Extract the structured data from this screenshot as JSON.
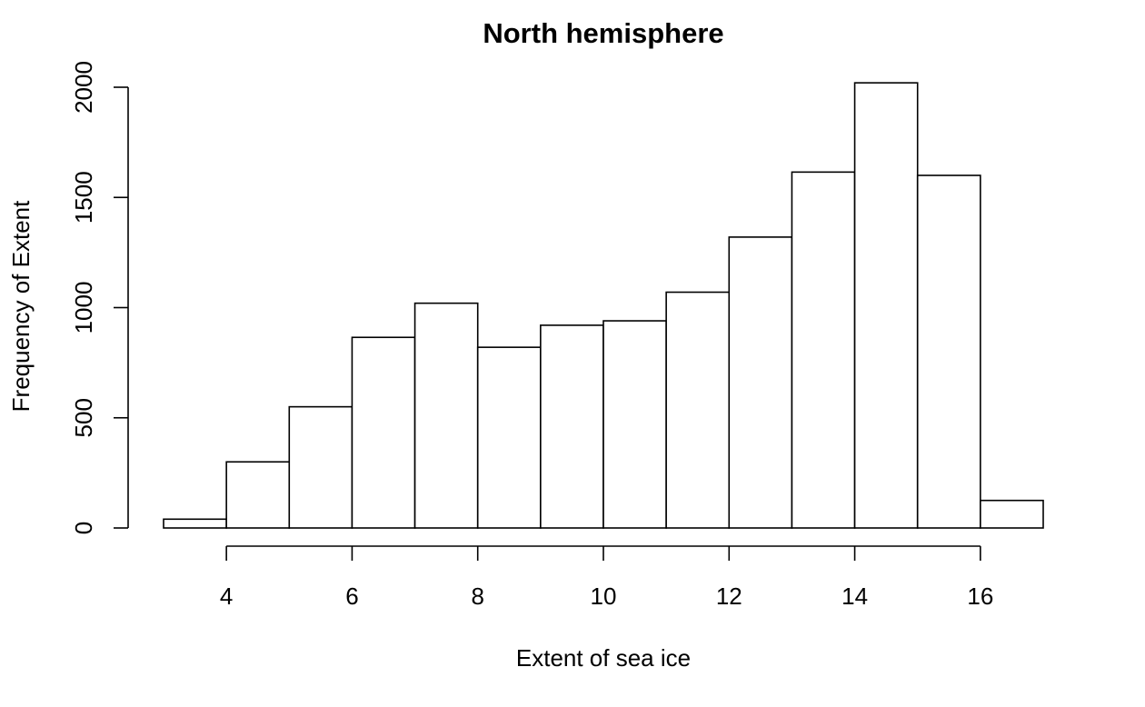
{
  "chart_data": {
    "type": "bar",
    "title": "North hemisphere",
    "xlabel": "Extent of sea ice",
    "ylabel": "Frequency of Extent",
    "bins": [
      {
        "from": 3,
        "to": 4,
        "count": 40
      },
      {
        "from": 4,
        "to": 5,
        "count": 300
      },
      {
        "from": 5,
        "to": 6,
        "count": 550
      },
      {
        "from": 6,
        "to": 7,
        "count": 865
      },
      {
        "from": 7,
        "to": 8,
        "count": 1020
      },
      {
        "from": 8,
        "to": 9,
        "count": 820
      },
      {
        "from": 9,
        "to": 10,
        "count": 920
      },
      {
        "from": 10,
        "to": 11,
        "count": 940
      },
      {
        "from": 11,
        "to": 12,
        "count": 1070
      },
      {
        "from": 12,
        "to": 13,
        "count": 1320
      },
      {
        "from": 13,
        "to": 14,
        "count": 1615
      },
      {
        "from": 14,
        "to": 15,
        "count": 2020
      },
      {
        "from": 15,
        "to": 16,
        "count": 1600
      },
      {
        "from": 16,
        "to": 17,
        "count": 125
      }
    ],
    "xticks": [
      "4",
      "6",
      "8",
      "10",
      "12",
      "14",
      "16"
    ],
    "yticks": [
      "0",
      "500",
      "1000",
      "1500",
      "2000"
    ],
    "xlim": [
      3,
      17
    ],
    "ylim": [
      0,
      2000
    ],
    "grid": false,
    "colors": {
      "bar_fill": "#ffffff",
      "bar_stroke": "#000000"
    }
  }
}
